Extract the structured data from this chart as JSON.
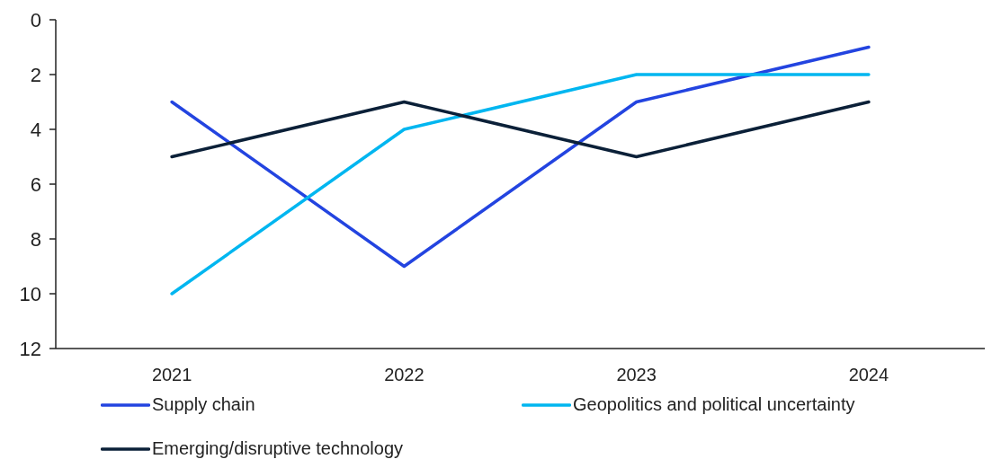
{
  "chart_data": {
    "type": "line",
    "categories": [
      "2021",
      "2022",
      "2023",
      "2024"
    ],
    "series": [
      {
        "name": "Supply chain",
        "color": "#2344e0",
        "values": [
          3,
          9,
          3,
          1
        ]
      },
      {
        "name": "Geopolitics and political uncertainty",
        "color": "#00b6f0",
        "values": [
          10,
          4,
          2,
          2
        ]
      },
      {
        "name": "Emerging/disruptive technology",
        "color": "#0b2038",
        "values": [
          5,
          3,
          5,
          3
        ]
      }
    ],
    "ylim": [
      12,
      0
    ],
    "yticks": [
      0,
      2,
      4,
      6,
      8,
      10,
      12
    ],
    "legend": "bottom",
    "marker": "none",
    "line_style": "solid"
  }
}
